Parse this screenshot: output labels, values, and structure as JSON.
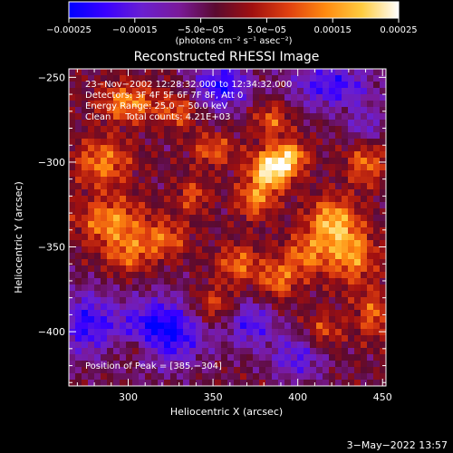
{
  "chart_data": {
    "type": "heatmap",
    "title": "Reconstructed RHESSI Image",
    "xlabel": "Heliocentric X (arcsec)",
    "ylabel": "Heliocentric Y (arcsec)",
    "xlim": [
      265,
      452
    ],
    "ylim": [
      -432,
      -245
    ],
    "x_ticks": [
      300,
      350,
      400,
      450
    ],
    "x_tick_labels": [
      "300",
      "350",
      "400",
      "450"
    ],
    "y_ticks": [
      -250,
      -300,
      -350,
      -400
    ],
    "y_tick_labels": [
      "−250",
      "−300",
      "−350",
      "−400"
    ],
    "colorbar": {
      "range": [
        -0.00025,
        0.00025
      ],
      "ticks": [
        -0.00025,
        -0.00015,
        -5e-05,
        5e-05,
        0.00015,
        0.00025
      ],
      "tick_labels": [
        "−0.00025",
        "−0.00015",
        "−5.0e−05",
        "5.0e−05",
        "0.00015",
        "0.00025"
      ],
      "unit_label": "(photons cm⁻² s⁻¹ asec⁻²)",
      "colors": [
        "#0000ff",
        "#3a00ff",
        "#6a1fd0",
        "#7a1a9a",
        "#5a0a30",
        "#a01010",
        "#e04010",
        "#ff8a10",
        "#ffcc40",
        "#ffffff"
      ]
    },
    "info_lines": [
      "23−Nov−2002 12:28:32.000 to 12:34:32.000",
      "Detectors: 3F 4F 5F 6F 7F 8F, Att 0",
      "Energy Range: 25.0 − 50.0 keV",
      "Clean     Total counts: 4.21E+03"
    ],
    "peak_label": "Position of Peak = [385,−304]",
    "peak": [
      385,
      -304
    ],
    "bright_regions": [
      {
        "x": 385,
        "y": -304,
        "amp": 1.0,
        "sx": 9,
        "sy": 8
      },
      {
        "x": 397,
        "y": -296,
        "amp": 0.55,
        "sx": 7,
        "sy": 6
      },
      {
        "x": 375,
        "y": -322,
        "amp": 0.55,
        "sx": 8,
        "sy": 8
      },
      {
        "x": 350,
        "y": -293,
        "amp": 0.45,
        "sx": 9,
        "sy": 7
      },
      {
        "x": 385,
        "y": -275,
        "amp": 0.45,
        "sx": 8,
        "sy": 8
      },
      {
        "x": 420,
        "y": -335,
        "amp": 0.7,
        "sx": 10,
        "sy": 10
      },
      {
        "x": 432,
        "y": -355,
        "amp": 0.6,
        "sx": 10,
        "sy": 12
      },
      {
        "x": 440,
        "y": -300,
        "amp": 0.5,
        "sx": 8,
        "sy": 10
      },
      {
        "x": 405,
        "y": -355,
        "amp": 0.5,
        "sx": 10,
        "sy": 9
      },
      {
        "x": 365,
        "y": -360,
        "amp": 0.5,
        "sx": 9,
        "sy": 8
      },
      {
        "x": 388,
        "y": -370,
        "amp": 0.5,
        "sx": 8,
        "sy": 8
      },
      {
        "x": 350,
        "y": -385,
        "amp": 0.45,
        "sx": 10,
        "sy": 8
      },
      {
        "x": 300,
        "y": -265,
        "amp": 0.6,
        "sx": 12,
        "sy": 8
      },
      {
        "x": 285,
        "y": -300,
        "amp": 0.55,
        "sx": 12,
        "sy": 10
      },
      {
        "x": 290,
        "y": -335,
        "amp": 0.6,
        "sx": 14,
        "sy": 10
      },
      {
        "x": 322,
        "y": -345,
        "amp": 0.45,
        "sx": 10,
        "sy": 8
      },
      {
        "x": 330,
        "y": -270,
        "amp": 0.45,
        "sx": 8,
        "sy": 7
      },
      {
        "x": 338,
        "y": -320,
        "amp": 0.4,
        "sx": 7,
        "sy": 7
      },
      {
        "x": 445,
        "y": -390,
        "amp": 0.45,
        "sx": 8,
        "sy": 10
      },
      {
        "x": 305,
        "y": -410,
        "amp": 0.4,
        "sx": 10,
        "sy": 6
      },
      {
        "x": 415,
        "y": -400,
        "amp": 0.4,
        "sx": 8,
        "sy": 8
      },
      {
        "x": 300,
        "y": -355,
        "amp": 0.45,
        "sx": 10,
        "sy": 8
      }
    ],
    "dark_regions": [
      {
        "x": 320,
        "y": -400,
        "amp": -0.85,
        "sx": 18,
        "sy": 14
      },
      {
        "x": 355,
        "y": -255,
        "amp": -0.7,
        "sx": 12,
        "sy": 10
      },
      {
        "x": 275,
        "y": -395,
        "amp": -0.6,
        "sx": 12,
        "sy": 14
      },
      {
        "x": 400,
        "y": -415,
        "amp": -0.5,
        "sx": 12,
        "sy": 10
      },
      {
        "x": 420,
        "y": -255,
        "amp": -0.6,
        "sx": 18,
        "sy": 10
      },
      {
        "x": 372,
        "y": -395,
        "amp": -0.55,
        "sx": 10,
        "sy": 10
      },
      {
        "x": 440,
        "y": -280,
        "amp": -0.4,
        "sx": 8,
        "sy": 8
      }
    ]
  },
  "footer": {
    "date": "3−May−2022 13:57"
  }
}
